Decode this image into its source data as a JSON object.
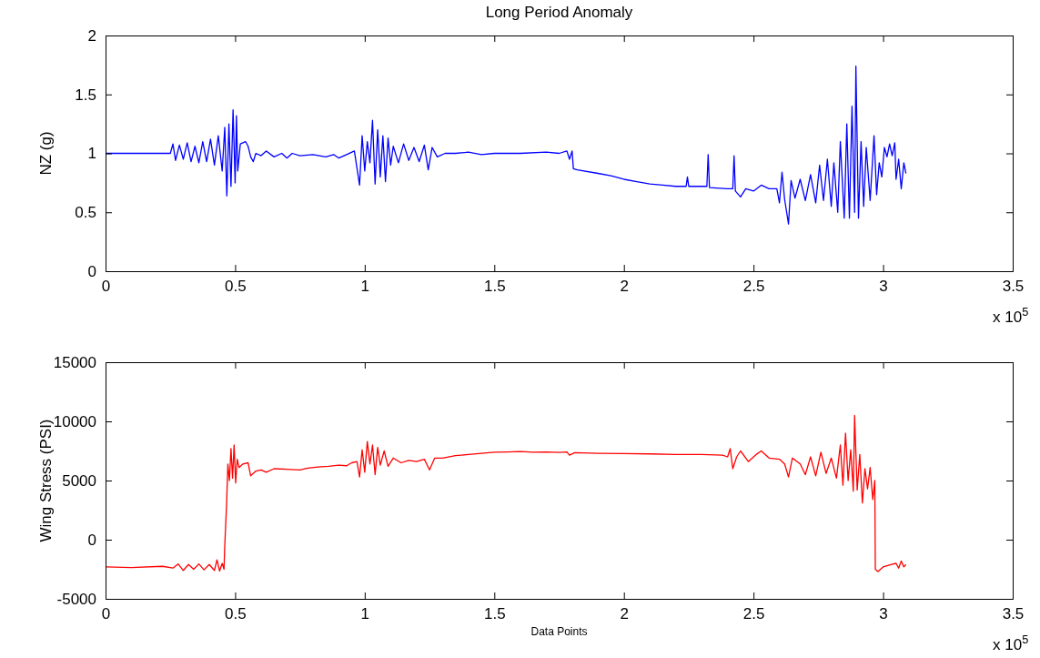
{
  "chart_data": [
    {
      "type": "line",
      "title": "Long Period Anomaly",
      "ylabel": "NZ (g)",
      "annotations": [
        "x 10$^{5}$"
      ],
      "xlim": [
        0,
        3.5
      ],
      "xticks": [
        0,
        0.5,
        1,
        1.5,
        2,
        2.5,
        3,
        3.5
      ],
      "ylim": [
        0,
        2
      ],
      "yticks": [
        0,
        0.5,
        1,
        1.5,
        2
      ],
      "line_style": "solid",
      "x": [
        0,
        0.25,
        0.26,
        0.27,
        0.285,
        0.3,
        0.315,
        0.33,
        0.345,
        0.36,
        0.375,
        0.39,
        0.405,
        0.42,
        0.435,
        0.45,
        0.46,
        0.468,
        0.476,
        0.484,
        0.492,
        0.5,
        0.505,
        0.51,
        0.52,
        0.54,
        0.55,
        0.56,
        0.57,
        0.58,
        0.6,
        0.62,
        0.65,
        0.68,
        0.7,
        0.72,
        0.75,
        0.8,
        0.85,
        0.88,
        0.9,
        0.93,
        0.96,
        0.98,
        0.99,
        1.0,
        1.01,
        1.02,
        1.03,
        1.04,
        1.05,
        1.06,
        1.07,
        1.08,
        1.09,
        1.1,
        1.11,
        1.13,
        1.15,
        1.17,
        1.19,
        1.21,
        1.23,
        1.245,
        1.26,
        1.28,
        1.31,
        1.35,
        1.4,
        1.45,
        1.5,
        1.6,
        1.7,
        1.75,
        1.78,
        1.79,
        1.8,
        1.805,
        1.82,
        1.9,
        1.95,
        2.0,
        2.05,
        2.1,
        2.15,
        2.2,
        2.24,
        2.245,
        2.25,
        2.3,
        2.32,
        2.325,
        2.33,
        2.4,
        2.42,
        2.425,
        2.43,
        2.45,
        2.47,
        2.5,
        2.53,
        2.56,
        2.59,
        2.6,
        2.61,
        2.62,
        2.635,
        2.645,
        2.66,
        2.68,
        2.7,
        2.72,
        2.74,
        2.755,
        2.77,
        2.785,
        2.8,
        2.81,
        2.825,
        2.835,
        2.85,
        2.86,
        2.87,
        2.88,
        2.89,
        2.895,
        2.905,
        2.915,
        2.925,
        2.935,
        2.95,
        2.965,
        2.975,
        2.985,
        2.995,
        3.005,
        3.015,
        3.025,
        3.035,
        3.045,
        3.05,
        3.06,
        3.07,
        3.08,
        3.088
      ],
      "series": [
        {
          "color": "#0000ff",
          "values": [
            1.0,
            1.0,
            1.08,
            0.94,
            1.07,
            0.95,
            1.09,
            0.93,
            1.06,
            0.92,
            1.1,
            0.93,
            1.12,
            0.9,
            1.15,
            0.85,
            1.22,
            0.64,
            1.25,
            0.72,
            1.37,
            0.75,
            1.32,
            0.85,
            1.08,
            1.1,
            1.06,
            0.97,
            0.93,
            1.0,
            0.98,
            1.02,
            0.97,
            1.0,
            0.96,
            1.0,
            0.98,
            0.99,
            0.97,
            0.99,
            0.96,
            0.99,
            1.02,
            0.73,
            1.15,
            0.85,
            1.1,
            0.92,
            1.28,
            0.74,
            1.2,
            0.8,
            1.15,
            0.76,
            1.13,
            0.9,
            1.06,
            0.92,
            1.08,
            0.94,
            1.05,
            0.93,
            1.07,
            0.86,
            1.05,
            0.97,
            1.0,
            1.0,
            1.01,
            0.99,
            1.0,
            1.0,
            1.01,
            1.0,
            1.02,
            0.95,
            1.02,
            0.87,
            0.86,
            0.83,
            0.81,
            0.78,
            0.76,
            0.74,
            0.73,
            0.72,
            0.72,
            0.8,
            0.72,
            0.72,
            0.72,
            0.99,
            0.71,
            0.7,
            0.7,
            0.98,
            0.68,
            0.63,
            0.7,
            0.68,
            0.73,
            0.7,
            0.7,
            0.58,
            0.84,
            0.61,
            0.4,
            0.77,
            0.62,
            0.78,
            0.6,
            0.82,
            0.58,
            0.9,
            0.6,
            0.95,
            0.55,
            0.92,
            0.5,
            1.1,
            0.45,
            1.25,
            0.45,
            1.4,
            0.5,
            1.74,
            0.45,
            1.1,
            0.55,
            1.05,
            0.6,
            1.15,
            0.65,
            0.92,
            0.8,
            1.05,
            0.97,
            1.08,
            0.98,
            1.09,
            0.78,
            0.95,
            0.7,
            0.92,
            0.83
          ]
        }
      ]
    },
    {
      "type": "line",
      "xlabel": "Data Points",
      "ylabel": "Wing Stress (PSI)",
      "annotations": [
        "x 10$^{5}$"
      ],
      "xlim": [
        0,
        3.5
      ],
      "xticks": [
        0,
        0.5,
        1,
        1.5,
        2,
        2.5,
        3,
        3.5
      ],
      "ylim": [
        -5000,
        15000
      ],
      "yticks": [
        -5000,
        0,
        5000,
        10000,
        15000
      ],
      "line_style": "solid",
      "x": [
        0,
        0.1,
        0.22,
        0.26,
        0.28,
        0.3,
        0.32,
        0.34,
        0.36,
        0.38,
        0.4,
        0.42,
        0.43,
        0.44,
        0.45,
        0.457,
        0.46,
        0.467,
        0.472,
        0.478,
        0.484,
        0.49,
        0.496,
        0.502,
        0.508,
        0.515,
        0.53,
        0.55,
        0.56,
        0.58,
        0.6,
        0.62,
        0.65,
        0.7,
        0.75,
        0.78,
        0.82,
        0.86,
        0.9,
        0.93,
        0.95,
        0.97,
        0.98,
        0.99,
        1.0,
        1.01,
        1.02,
        1.03,
        1.04,
        1.05,
        1.06,
        1.075,
        1.09,
        1.11,
        1.14,
        1.17,
        1.2,
        1.23,
        1.25,
        1.27,
        1.3,
        1.35,
        1.4,
        1.45,
        1.5,
        1.55,
        1.6,
        1.65,
        1.7,
        1.75,
        1.78,
        1.79,
        1.81,
        1.9,
        2.0,
        2.1,
        2.2,
        2.3,
        2.38,
        2.4,
        2.41,
        2.42,
        2.435,
        2.45,
        2.48,
        2.51,
        2.53,
        2.56,
        2.6,
        2.62,
        2.635,
        2.65,
        2.68,
        2.7,
        2.72,
        2.74,
        2.76,
        2.78,
        2.8,
        2.82,
        2.835,
        2.845,
        2.855,
        2.865,
        2.875,
        2.885,
        2.89,
        2.9,
        2.91,
        2.92,
        2.93,
        2.94,
        2.95,
        2.96,
        2.968,
        2.97,
        2.98,
        3.0,
        3.03,
        3.05,
        3.06,
        3.07,
        3.08,
        3.088
      ],
      "series": [
        {
          "color": "#ff0000",
          "values": [
            -2300,
            -2350,
            -2250,
            -2400,
            -2050,
            -2600,
            -2100,
            -2500,
            -2050,
            -2550,
            -2100,
            -2600,
            -1700,
            -2650,
            -2000,
            -2500,
            -500,
            3000,
            6400,
            5000,
            7700,
            5200,
            8000,
            4800,
            6800,
            6100,
            6400,
            6500,
            5400,
            5800,
            5900,
            5700,
            6000,
            5950,
            5900,
            6050,
            6150,
            6200,
            6300,
            6250,
            6500,
            6600,
            5300,
            7600,
            5700,
            8300,
            6400,
            8000,
            5500,
            7800,
            6300,
            7500,
            6200,
            6900,
            6500,
            6700,
            6600,
            6800,
            5900,
            6900,
            6900,
            7100,
            7200,
            7300,
            7400,
            7420,
            7450,
            7400,
            7420,
            7380,
            7420,
            7150,
            7350,
            7300,
            7280,
            7250,
            7200,
            7200,
            7150,
            7000,
            7700,
            6000,
            7000,
            7500,
            6600,
            7200,
            7500,
            6900,
            6800,
            6400,
            5300,
            6900,
            6400,
            5500,
            7000,
            5400,
            7400,
            5600,
            6900,
            5200,
            8000,
            4600,
            9000,
            5000,
            7600,
            4100,
            10500,
            4200,
            7200,
            3100,
            6000,
            4300,
            6100,
            3400,
            5000,
            -2500,
            -2700,
            -2300,
            -2100,
            -2000,
            -2400,
            -1800,
            -2300,
            -2100
          ]
        }
      ]
    }
  ]
}
